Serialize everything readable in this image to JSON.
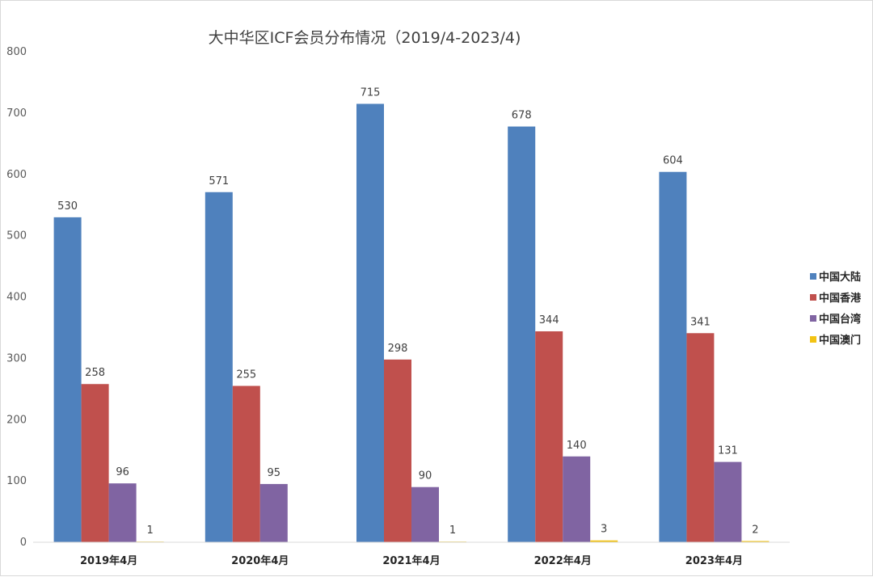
{
  "chart_data": {
    "type": "bar",
    "title": "大中华区ICF会员分布情况（2019/4-2023/4)",
    "categories": [
      "2019年4月",
      "2020年4月",
      "2021年4月",
      "2022年4月",
      "2023年4月"
    ],
    "series": [
      {
        "name": "中国大陆",
        "color": "#4f81bd",
        "values": [
          530,
          571,
          715,
          678,
          604
        ]
      },
      {
        "name": "中国香港",
        "color": "#c0504d",
        "values": [
          258,
          255,
          298,
          344,
          341
        ]
      },
      {
        "name": "中国台湾",
        "color": "#8064a2",
        "values": [
          96,
          95,
          90,
          140,
          131
        ]
      },
      {
        "name": "中国澳门",
        "color": "#f2c314",
        "values": [
          1,
          null,
          1,
          3,
          2
        ]
      }
    ],
    "ylim": [
      0,
      800
    ],
    "yticks": [
      "0",
      "100",
      "200",
      "300",
      "400",
      "500",
      "600",
      "700",
      "800"
    ],
    "xlabel": "",
    "ylabel": "",
    "grid": false,
    "legend_position": "right"
  }
}
